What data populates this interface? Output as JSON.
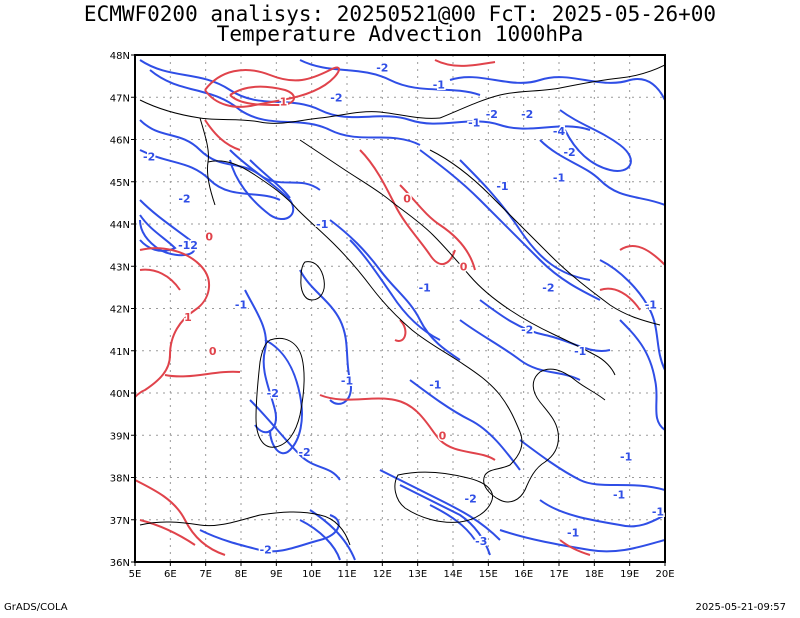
{
  "title_line1": "ECMWF0200 analisys: 20250521@00 FcT: 2025-05-26+00",
  "title_line2": "Temperature Advection 1000hPa",
  "footer_left": "GrADS/COLA",
  "footer_right": "2025-05-21-09:57",
  "colors": {
    "positive": "#e0434b",
    "negative": "#2f4ee6",
    "coast": "#000000",
    "grid": "#9a9a9a"
  },
  "map": {
    "lon_labels": [
      "5E",
      "6E",
      "7E",
      "8E",
      "9E",
      "10E",
      "11E",
      "12E",
      "13E",
      "14E",
      "15E",
      "16E",
      "17E",
      "18E",
      "19E",
      "20E"
    ],
    "lat_labels": [
      "48N",
      "47N",
      "46N",
      "45N",
      "44N",
      "43N",
      "42N",
      "41N",
      "40N",
      "39N",
      "38N",
      "37N",
      "36N"
    ],
    "lon_range": [
      5,
      20
    ],
    "lat_range": [
      36,
      48
    ],
    "grid": true
  },
  "contour_labels": [
    {
      "text": "-1",
      "lon": 13.6,
      "lat": 47.3,
      "sign": "neg"
    },
    {
      "text": "-2",
      "lon": 10.7,
      "lat": 47.0,
      "sign": "neg"
    },
    {
      "text": "-2",
      "lon": 12.0,
      "lat": 47.7,
      "sign": "neg"
    },
    {
      "text": "1",
      "lon": 9.2,
      "lat": 46.9,
      "sign": "pos"
    },
    {
      "text": "-2",
      "lon": 15.1,
      "lat": 46.6,
      "sign": "neg"
    },
    {
      "text": "-2",
      "lon": 16.1,
      "lat": 46.6,
      "sign": "neg"
    },
    {
      "text": "-4",
      "lon": 17.0,
      "lat": 46.2,
      "sign": "neg"
    },
    {
      "text": "-2",
      "lon": 17.3,
      "lat": 45.7,
      "sign": "neg"
    },
    {
      "text": "-1",
      "lon": 17.0,
      "lat": 45.1,
      "sign": "neg"
    },
    {
      "text": "-1",
      "lon": 15.4,
      "lat": 44.9,
      "sign": "neg"
    },
    {
      "text": "-2",
      "lon": 5.4,
      "lat": 45.6,
      "sign": "neg"
    },
    {
      "text": "-2",
      "lon": 6.4,
      "lat": 44.6,
      "sign": "neg"
    },
    {
      "text": "-12",
      "lon": 6.5,
      "lat": 43.5,
      "sign": "neg"
    },
    {
      "text": "0",
      "lon": 7.1,
      "lat": 43.7,
      "sign": "pos"
    },
    {
      "text": "0",
      "lon": 12.7,
      "lat": 44.6,
      "sign": "pos"
    },
    {
      "text": "0",
      "lon": 14.3,
      "lat": 43.0,
      "sign": "pos"
    },
    {
      "text": "0",
      "lon": 7.2,
      "lat": 41.0,
      "sign": "pos"
    },
    {
      "text": "1",
      "lon": 6.5,
      "lat": 41.8,
      "sign": "pos"
    },
    {
      "text": "-1",
      "lon": 8.0,
      "lat": 42.1,
      "sign": "neg"
    },
    {
      "text": "-2",
      "lon": 16.1,
      "lat": 41.5,
      "sign": "neg"
    },
    {
      "text": "-1",
      "lon": 17.6,
      "lat": 41.0,
      "sign": "neg"
    },
    {
      "text": "-2",
      "lon": 16.7,
      "lat": 42.5,
      "sign": "neg"
    },
    {
      "text": "-1",
      "lon": 11.0,
      "lat": 40.3,
      "sign": "neg"
    },
    {
      "text": "-1",
      "lon": 13.5,
      "lat": 40.2,
      "sign": "neg"
    },
    {
      "text": "-2",
      "lon": 8.9,
      "lat": 40.0,
      "sign": "neg"
    },
    {
      "text": "0",
      "lon": 13.7,
      "lat": 39.0,
      "sign": "pos"
    },
    {
      "text": "-2",
      "lon": 9.8,
      "lat": 38.6,
      "sign": "neg"
    },
    {
      "text": "-1",
      "lon": 18.9,
      "lat": 38.5,
      "sign": "neg"
    },
    {
      "text": "-2",
      "lon": 14.5,
      "lat": 37.5,
      "sign": "neg"
    },
    {
      "text": "-1",
      "lon": 18.7,
      "lat": 37.6,
      "sign": "neg"
    },
    {
      "text": "-1",
      "lon": 17.4,
      "lat": 36.7,
      "sign": "neg"
    },
    {
      "text": "-1",
      "lon": 19.8,
      "lat": 37.2,
      "sign": "neg"
    },
    {
      "text": "-2",
      "lon": 8.7,
      "lat": 36.3,
      "sign": "neg"
    },
    {
      "text": "-3",
      "lon": 14.8,
      "lat": 36.5,
      "sign": "neg"
    },
    {
      "text": "-1",
      "lon": 19.6,
      "lat": 42.1,
      "sign": "neg"
    },
    {
      "text": "-1",
      "lon": 10.3,
      "lat": 44.0,
      "sign": "neg"
    },
    {
      "text": "-1",
      "lon": 13.2,
      "lat": 42.5,
      "sign": "neg"
    },
    {
      "text": "-1",
      "lon": 14.6,
      "lat": 46.4,
      "sign": "neg"
    }
  ]
}
